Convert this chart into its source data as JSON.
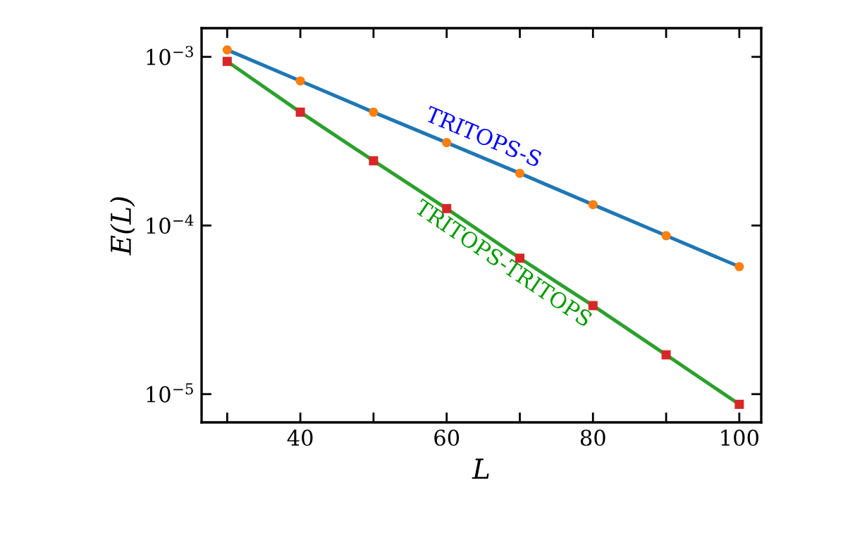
{
  "chart_data": {
    "type": "line",
    "xlabel": "L",
    "ylabel": "E(L)",
    "log": "y",
    "x": [
      30,
      40,
      50,
      60,
      70,
      80,
      90,
      100
    ],
    "series": [
      {
        "name": "TRITOPS-S",
        "color": "#1f77b4",
        "values": [
          0.0011,
          0.00072,
          0.00047,
          0.00031,
          0.000204,
          0.000133,
          8.7e-05,
          5.7e-05
        ]
      },
      {
        "type": "scatter",
        "color": "#ff7f0e",
        "marker": "circle",
        "values": [
          0.0011,
          0.00072,
          0.00047,
          0.00031,
          0.000204,
          0.000133,
          8.7e-05,
          5.7e-05
        ]
      },
      {
        "name": "TRITOPS-TRITOPS",
        "color": "#2ca02c",
        "values": [
          0.00094,
          0.00047,
          0.000242,
          0.000126,
          6.4e-05,
          3.35e-05,
          1.71e-05,
          8.7e-06
        ]
      },
      {
        "type": "scatter",
        "color": "#d62728",
        "marker": "square",
        "values": [
          0.00094,
          0.00047,
          0.000242,
          0.000126,
          6.4e-05,
          3.35e-05,
          1.71e-05,
          8.7e-06
        ]
      }
    ],
    "xlim": [
      26.5,
      103
    ],
    "xticks": [
      {
        "value": 30,
        "label": null
      },
      40,
      {
        "value": 50,
        "label": null
      },
      60,
      {
        "value": 70,
        "label": null
      },
      80,
      {
        "value": 90,
        "label": null
      },
      100
    ],
    "ylim": [
      6.8e-06,
      0.00148
    ],
    "yticks": [
      {
        "value": 0.001,
        "label": "10$^{−3}$"
      },
      {
        "value": 0.0001,
        "label": "10$^{−4}$"
      },
      {
        "value": 1e-05,
        "label": "10$^{−5}$"
      }
    ],
    "grid": false,
    "legend": false
  }
}
